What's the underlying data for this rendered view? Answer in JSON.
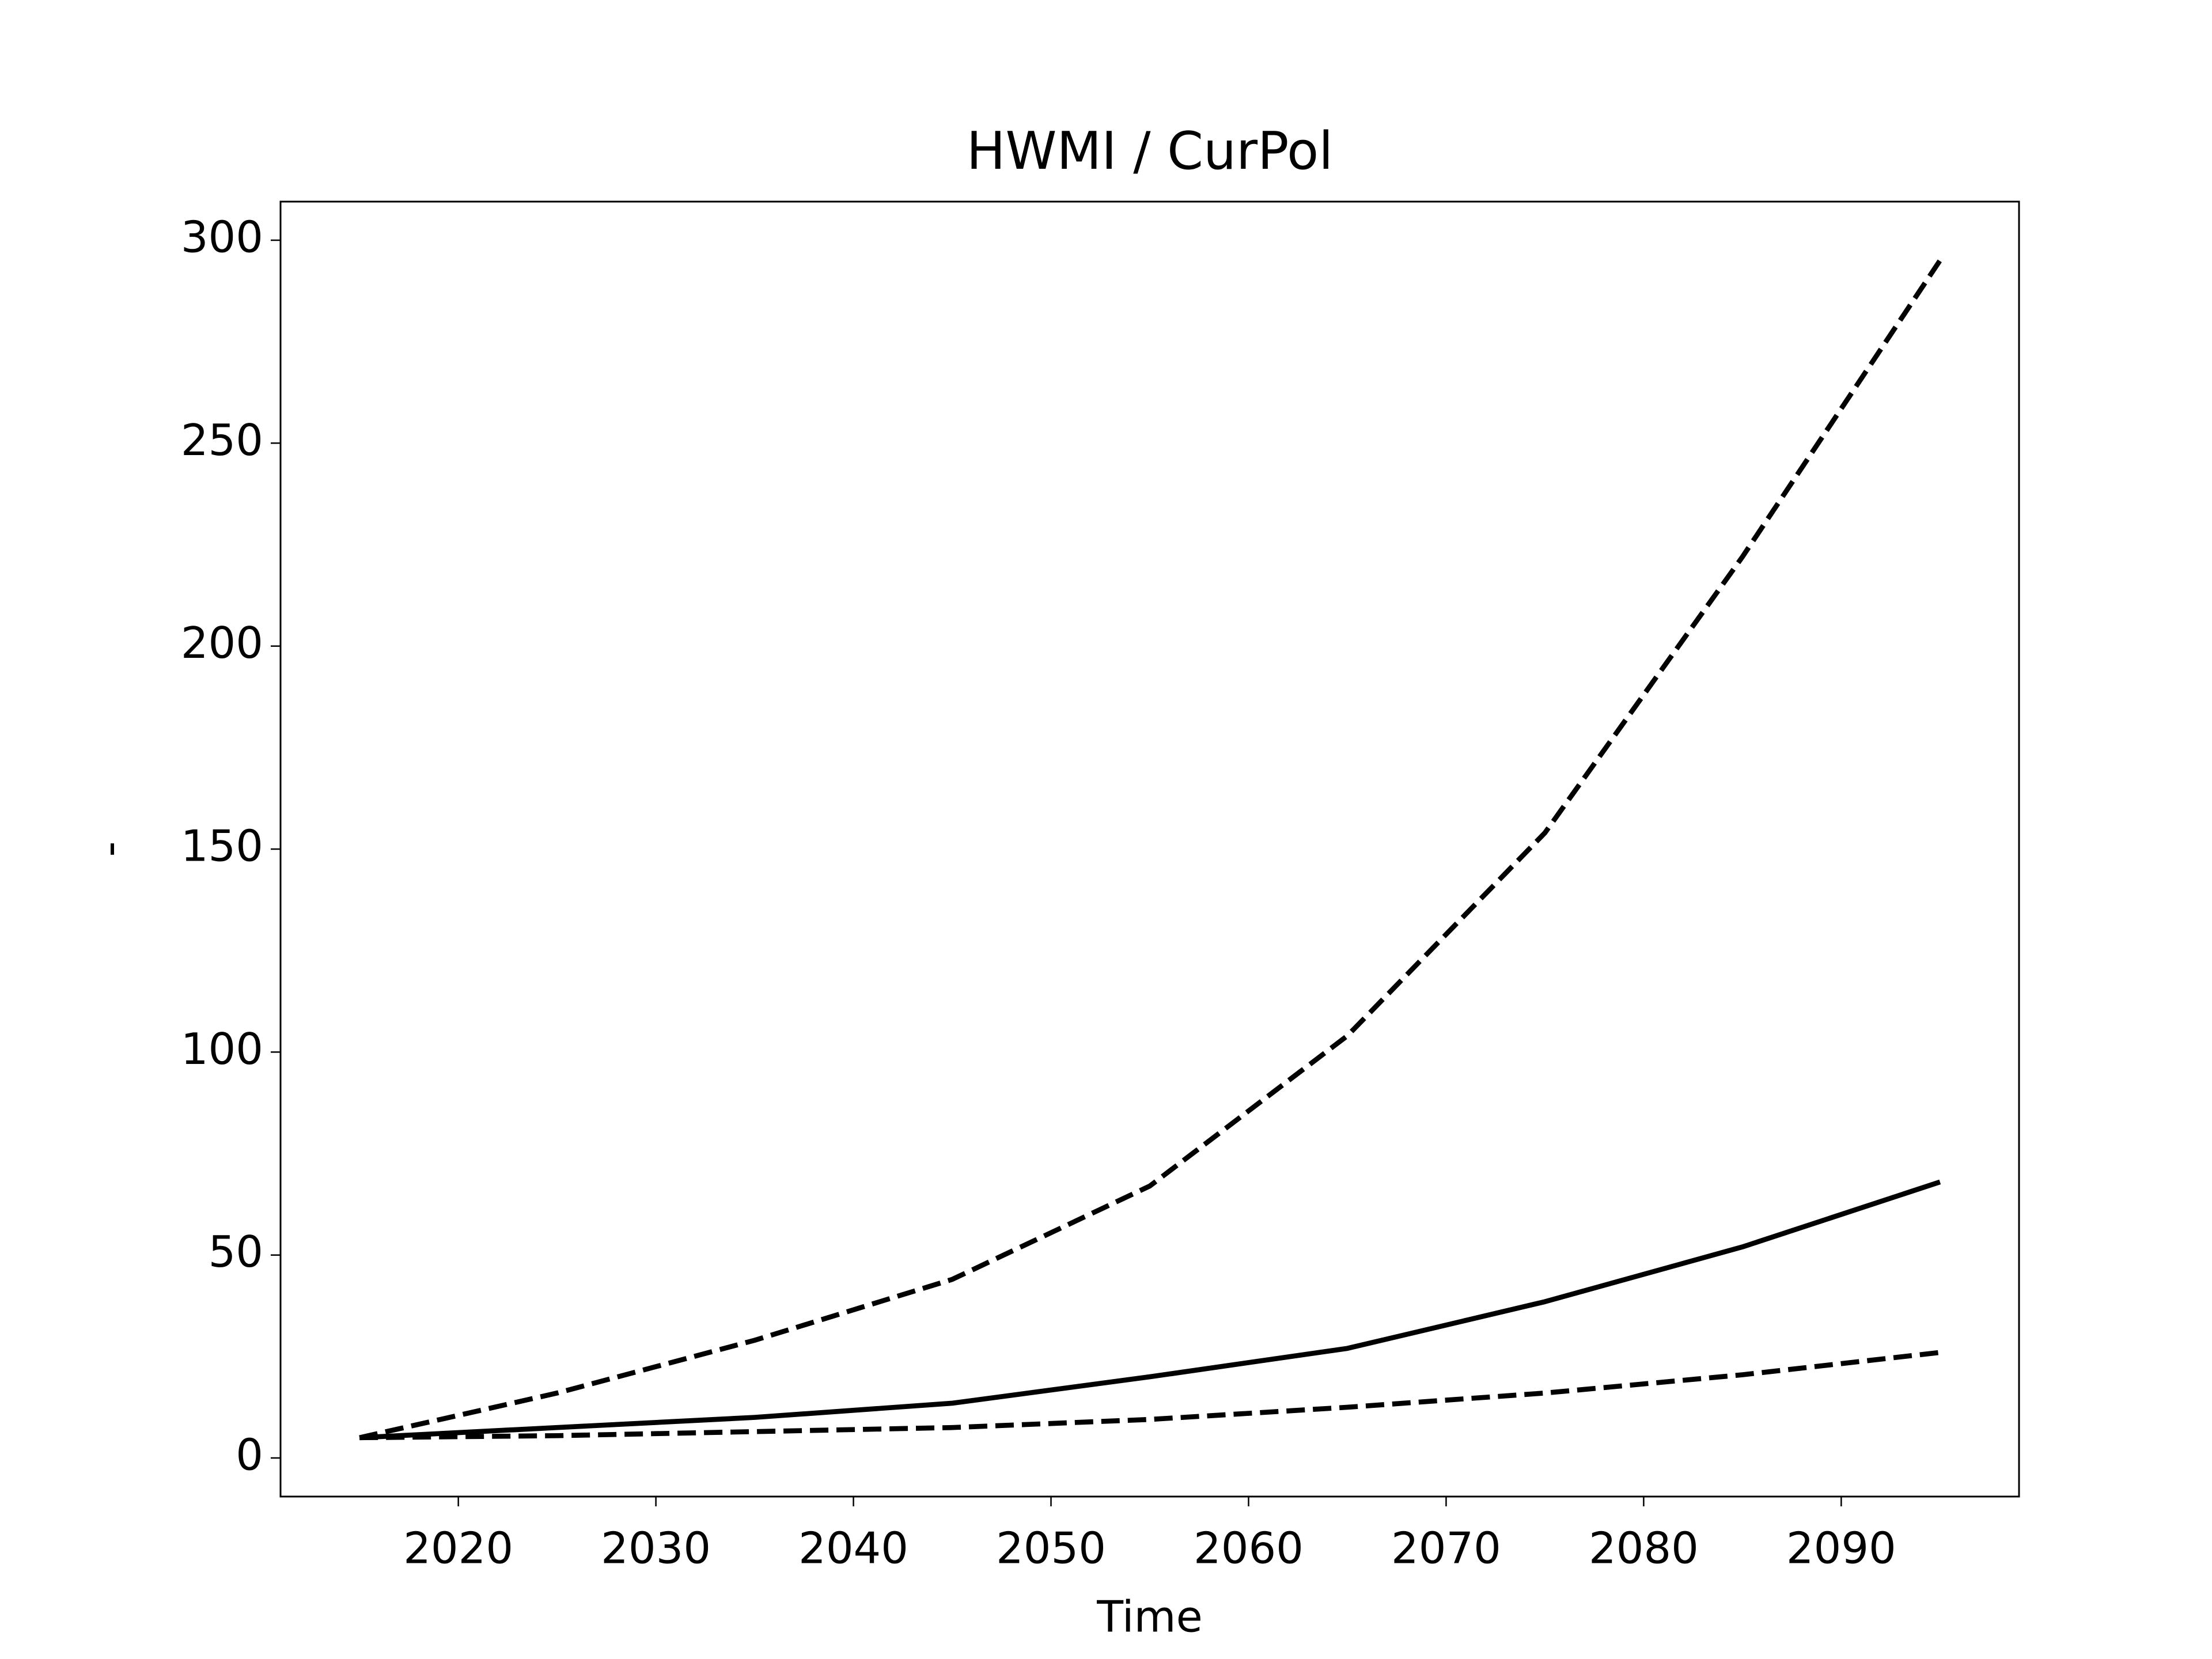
{
  "chart_data": {
    "type": "line",
    "title": "HWMI / CurPol",
    "x_label": "Time",
    "y_label": "-",
    "x": [
      2015,
      2025,
      2035,
      2045,
      2055,
      2065,
      2075,
      2085,
      2095
    ],
    "series": [
      {
        "color": "#000000",
        "linestyle": "solid",
        "values": [
          5,
          7.5,
          10,
          13.5,
          20,
          27,
          38.5,
          52,
          68
        ]
      },
      {
        "color": "#000000",
        "linestyle": "dashed",
        "values": [
          5,
          16,
          29,
          44,
          67,
          104,
          154,
          222,
          295
        ]
      },
      {
        "color": "#000000",
        "linestyle": "dashed",
        "values": [
          5,
          5.5,
          6.5,
          7.5,
          9.5,
          12.5,
          16,
          20.5,
          26
        ]
      }
    ],
    "xlim": [
      2011,
      2099
    ],
    "xticks": [
      2020,
      2030,
      2040,
      2050,
      2060,
      2070,
      2080,
      2090
    ],
    "ylim": [
      -9.5,
      309.5
    ],
    "yticks": [
      0,
      50,
      100,
      150,
      200,
      250,
      300
    ],
    "grid": false
  }
}
